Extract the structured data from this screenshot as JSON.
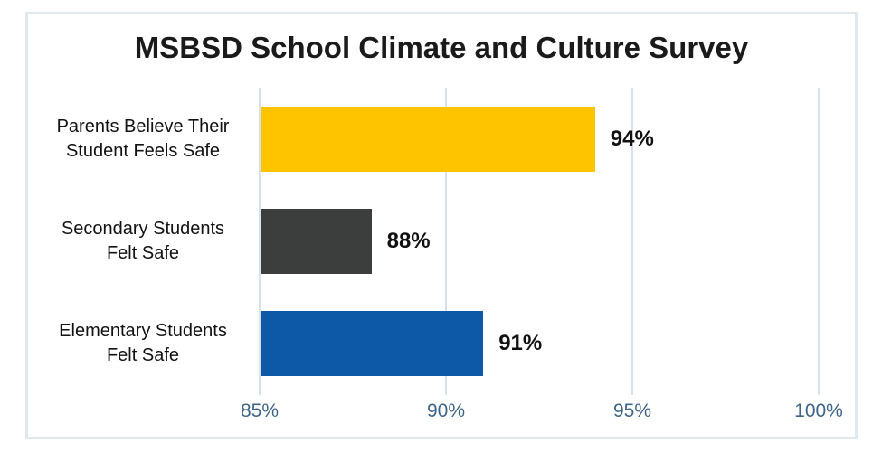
{
  "chart_data": {
    "type": "bar",
    "orientation": "horizontal",
    "title": "MSBSD School Climate and Culture Survey",
    "categories": [
      "Parents Believe Their\nStudent Feels Safe",
      "Secondary Students\nFelt Safe",
      "Elementary Students\nFelt Safe"
    ],
    "values": [
      94,
      88,
      91
    ],
    "value_labels": [
      "94%",
      "88%",
      "91%"
    ],
    "bar_colors": [
      "#ffc400",
      "#3b3e3d",
      "#0e58a8"
    ],
    "xlabel": "",
    "ylabel": "",
    "xlim": [
      85,
      100
    ],
    "xticks": [
      85,
      90,
      95,
      100
    ],
    "xtick_labels": [
      "85%",
      "90%",
      "95%",
      "100%"
    ],
    "grid": true,
    "legend": "none",
    "colors": {
      "gridline": "#d7e1e9",
      "panel_border": "#dfe8ee",
      "tick_label": "#3e6487",
      "title_text": "#1a1a1a",
      "value_text": "#111111",
      "category_text": "#121212",
      "background": "#ffffff"
    }
  }
}
